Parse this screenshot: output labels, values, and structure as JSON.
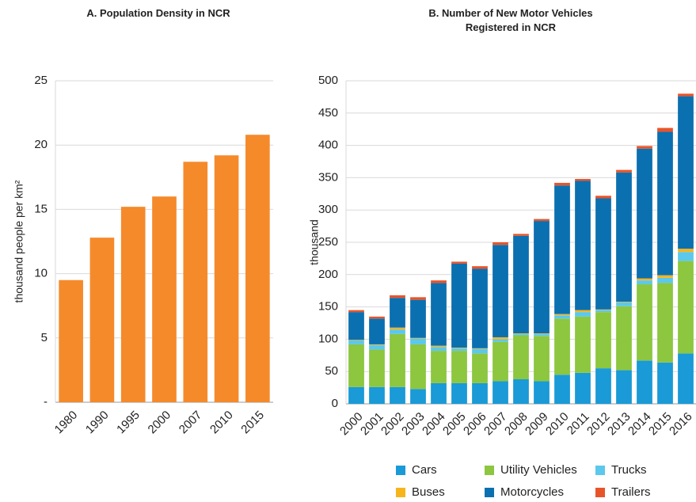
{
  "chart_data": [
    {
      "type": "bar",
      "title": "A. Population Density in NCR",
      "y_label": "thousand people per km²",
      "categories": [
        "1980",
        "1990",
        "1995",
        "2000",
        "2007",
        "2010",
        "2015"
      ],
      "values": [
        9.5,
        12.8,
        15.2,
        16.0,
        18.7,
        19.2,
        20.8
      ],
      "color": "#f58a2b",
      "ylim": [
        0,
        25
      ],
      "yticks": [
        {
          "value": 0,
          "label": "-"
        },
        5,
        10,
        15,
        20,
        25
      ],
      "grid": true
    },
    {
      "type": "stacked_bar",
      "title": "B. Number of New Motor Vehicles Registered in NCR",
      "y_label": "thousand",
      "categories": [
        "2000",
        "2001",
        "2002",
        "2003",
        "2004",
        "2005",
        "2006",
        "2007",
        "2008",
        "2009",
        "2010",
        "2011",
        "2012",
        "2013",
        "2014",
        "2015",
        "2016"
      ],
      "series": [
        {
          "name": "Cars",
          "color": "#1a9ad6",
          "values": [
            26,
            26,
            26,
            23,
            32,
            32,
            32,
            35,
            38,
            35,
            45,
            48,
            55,
            52,
            67,
            64,
            78
          ]
        },
        {
          "name": "Utility Vehicles",
          "color": "#8dc63f",
          "values": [
            66,
            58,
            82,
            69,
            50,
            50,
            46,
            61,
            68,
            70,
            87,
            87,
            87,
            99,
            118,
            123,
            143
          ]
        },
        {
          "name": "Trucks",
          "color": "#5bc8ec",
          "values": [
            6,
            7,
            7,
            9,
            6,
            4,
            7,
            4,
            2,
            3,
            5,
            7,
            3,
            6,
            6,
            8,
            14
          ]
        },
        {
          "name": "Buses",
          "color": "#f7b51c",
          "values": [
            1,
            1,
            3,
            1,
            2,
            1,
            1,
            3,
            1,
            1,
            2,
            3,
            1,
            1,
            3,
            4,
            5
          ]
        },
        {
          "name": "Motorcycles",
          "color": "#0b70b0",
          "values": [
            43,
            40,
            46,
            59,
            97,
            130,
            123,
            143,
            151,
            174,
            199,
            200,
            172,
            200,
            201,
            222,
            236
          ]
        },
        {
          "name": "Trailers",
          "color": "#e8542a",
          "values": [
            3,
            3,
            4,
            4,
            4,
            3,
            4,
            4,
            3,
            3,
            4,
            3,
            4,
            4,
            4,
            6,
            4
          ]
        }
      ],
      "ylim": [
        0,
        500
      ],
      "yticks": [
        0,
        50,
        100,
        150,
        200,
        250,
        300,
        350,
        400,
        450,
        500
      ],
      "grid": true
    }
  ]
}
